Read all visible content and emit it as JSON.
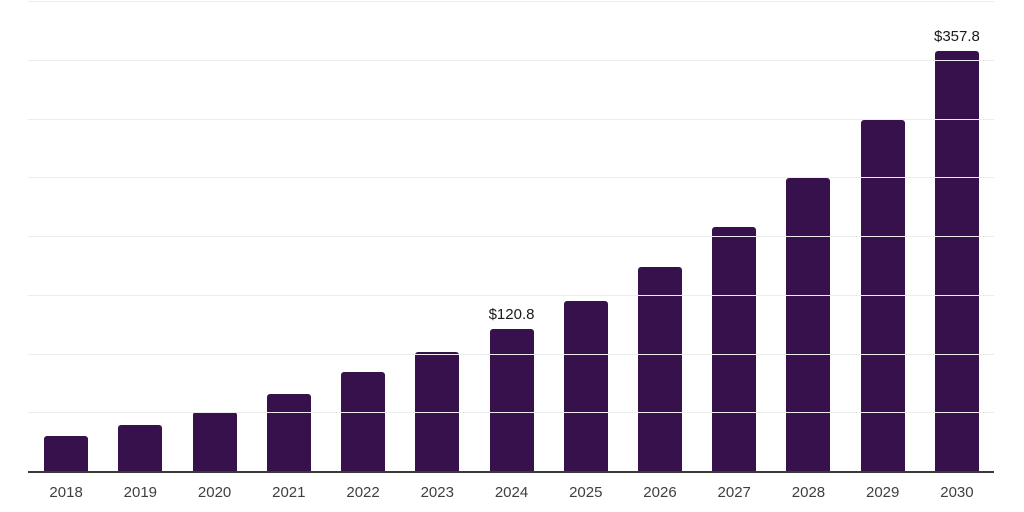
{
  "chart_data": {
    "type": "bar",
    "title": "",
    "xlabel": "",
    "ylabel": "",
    "categories": [
      "2018",
      "2019",
      "2020",
      "2021",
      "2022",
      "2023",
      "2024",
      "2025",
      "2026",
      "2027",
      "2028",
      "2029",
      "2030"
    ],
    "values": [
      30.0,
      38.9,
      50.2,
      65.3,
      84.0,
      101.5,
      120.8,
      145.0,
      173.3,
      207.8,
      249.0,
      298.5,
      357.8
    ],
    "bar_labels": [
      "",
      "",
      "",
      "",
      "",
      "",
      "$120.8",
      "",
      "",
      "",
      "",
      "",
      "$357.8"
    ],
    "value_prefix": "$",
    "ylim": [
      0,
      400
    ],
    "gridline_step": 50,
    "grid": "horizontal-only",
    "legend": "none",
    "y_axis_tick_labels": "none"
  },
  "colors": {
    "background": "#ffffff",
    "bar": "#36114C",
    "gridline": "#ececec",
    "axis_line": "#3a3a3a",
    "tick_label": "#3f3f3f",
    "data_label": "#1a1a1a"
  }
}
